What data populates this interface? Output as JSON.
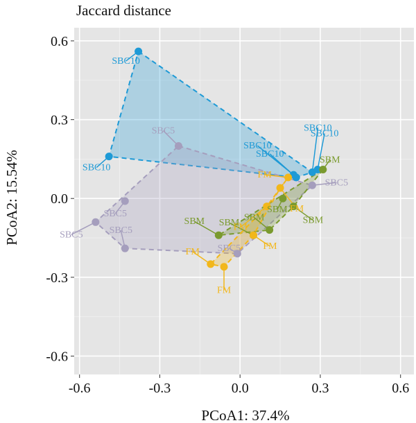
{
  "chart_data": {
    "type": "scatter",
    "title": "Jaccard distance",
    "xlabel": "PCoA1: 37.4%",
    "ylabel": "PCoA2: 15.54%",
    "xlim": [
      -0.62,
      0.65
    ],
    "ylim": [
      -0.67,
      0.65
    ],
    "xticks": [
      "-0.6",
      "-0.3",
      "0.0",
      "0.3",
      "0.6"
    ],
    "yticks": [
      "0.6",
      "0.3",
      "0.0",
      "-0.3",
      "-0.6"
    ],
    "grid": true,
    "background": "#e5e5e5",
    "series": [
      {
        "name": "SBC10",
        "color": "#1e9ad6",
        "points": [
          {
            "x": -0.38,
            "y": 0.56,
            "label": "SBC10"
          },
          {
            "x": -0.49,
            "y": 0.16,
            "label": "SBC10"
          },
          {
            "x": 0.21,
            "y": 0.08,
            "label": "SBC10"
          },
          {
            "x": 0.2,
            "y": 0.09,
            "label": "SBC10"
          },
          {
            "x": 0.27,
            "y": 0.1,
            "label": "SBC10"
          },
          {
            "x": 0.29,
            "y": 0.11,
            "label": "SBC10"
          }
        ],
        "hull": [
          0,
          4,
          2,
          1
        ]
      },
      {
        "name": "SBC5",
        "color": "#a59ebd",
        "points": [
          {
            "x": -0.23,
            "y": 0.2,
            "label": "SBC5"
          },
          {
            "x": 0.27,
            "y": 0.05,
            "label": "SBC5"
          },
          {
            "x": -0.43,
            "y": -0.01,
            "label": "SBC5"
          },
          {
            "x": -0.54,
            "y": -0.09,
            "label": "SBC5"
          },
          {
            "x": -0.43,
            "y": -0.19,
            "label": "SBC5"
          },
          {
            "x": -0.01,
            "y": -0.21,
            "label": "SBC5"
          }
        ],
        "hull": [
          0,
          1,
          5,
          4,
          3
        ]
      },
      {
        "name": "SBM",
        "color": "#7a9a2e",
        "points": [
          {
            "x": 0.31,
            "y": 0.11,
            "label": "SBM"
          },
          {
            "x": 0.16,
            "y": 0.0,
            "label": "SBM"
          },
          {
            "x": 0.2,
            "y": -0.03,
            "label": "SBM"
          },
          {
            "x": 0.11,
            "y": -0.12,
            "label": "SBM"
          },
          {
            "x": -0.08,
            "y": -0.14,
            "label": "SBM"
          },
          {
            "x": 0.05,
            "y": -0.14,
            "label": "SBM"
          }
        ],
        "hull": [
          0,
          2,
          3,
          4
        ]
      },
      {
        "name": "FM",
        "color": "#f2b71b",
        "points": [
          {
            "x": 0.18,
            "y": 0.08,
            "label": "FM"
          },
          {
            "x": 0.15,
            "y": 0.04,
            "label": "FM"
          },
          {
            "x": 0.1,
            "y": -0.03,
            "label": "FM"
          },
          {
            "x": 0.05,
            "y": -0.14,
            "label": "FM"
          },
          {
            "x": -0.11,
            "y": -0.25,
            "label": "FM"
          },
          {
            "x": -0.06,
            "y": -0.26,
            "label": "FM"
          }
        ],
        "hull": [
          0,
          1,
          3,
          5,
          4,
          2
        ]
      }
    ]
  }
}
